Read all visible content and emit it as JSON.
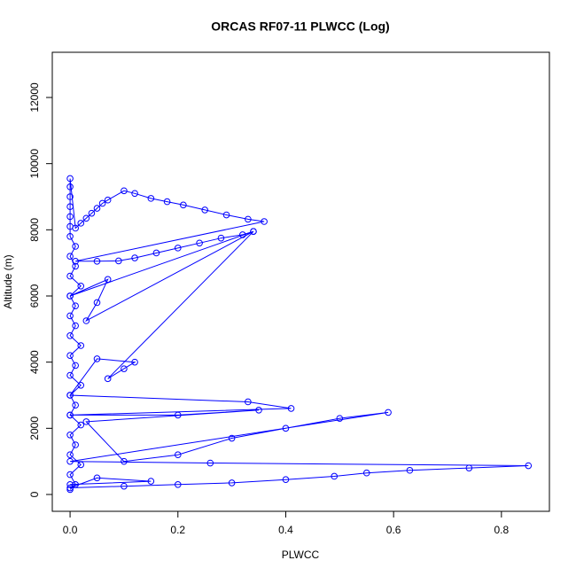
{
  "chart_data": {
    "type": "line",
    "marker": "open-circle",
    "title": "ORCAS RF07-11 PLWCC (Log)",
    "x_label": "PLWCC",
    "y_label": "Altitude (m)",
    "x": [
      0.0,
      0.01,
      0.0,
      0.02,
      0.0,
      0.01,
      0.0,
      0.02,
      0.0,
      0.01,
      0.0,
      0.02,
      0.0,
      0.01,
      0.0,
      0.02,
      0.0,
      0.01,
      0.0,
      0.01,
      0.0,
      0.02,
      0.0,
      0.01,
      0.0,
      0.01,
      0.0,
      0.0,
      0.0,
      0.0,
      0.0,
      0.0,
      0.0,
      0.01,
      0.02,
      0.03,
      0.04,
      0.05,
      0.06,
      0.07,
      0.1,
      0.12,
      0.15,
      0.18,
      0.21,
      0.25,
      0.29,
      0.33,
      0.36,
      0.01,
      0.05,
      0.09,
      0.12,
      0.16,
      0.2,
      0.24,
      0.28,
      0.32,
      0.34,
      0.03,
      0.05,
      0.07,
      0.0,
      0.34,
      0.07,
      0.1,
      0.12,
      0.05,
      0.0,
      0.33,
      0.41,
      0.0,
      0.2,
      0.35,
      0.03,
      0.1,
      0.2,
      0.3,
      0.4,
      0.5,
      0.59,
      0.0,
      0.26,
      0.85,
      0.74,
      0.63,
      0.55,
      0.49,
      0.4,
      0.3,
      0.2,
      0.1,
      0.0,
      0.05,
      0.15,
      0.0
    ],
    "series": [
      {
        "name": "PLWCC",
        "color": "#0000ff",
        "values": [
          150,
          300,
          600,
          900,
          1200,
          1500,
          1800,
          2100,
          2400,
          2700,
          3000,
          3300,
          3600,
          3900,
          4200,
          4500,
          4800,
          5100,
          5400,
          5700,
          6000,
          6300,
          6600,
          6900,
          7200,
          7500,
          7800,
          8100,
          8400,
          8700,
          9000,
          9300,
          9550,
          8050,
          8200,
          8350,
          8500,
          8650,
          8800,
          8900,
          9180,
          9100,
          8950,
          8850,
          8750,
          8600,
          8450,
          8320,
          8250,
          7050,
          7050,
          7060,
          7150,
          7300,
          7450,
          7600,
          7750,
          7850,
          7950,
          5250,
          5800,
          6500,
          6000,
          7950,
          3500,
          3800,
          4000,
          4100,
          3000,
          2800,
          2600,
          2400,
          2400,
          2550,
          2200,
          1000,
          1200,
          1700,
          2000,
          2300,
          2480,
          1000,
          950,
          870,
          800,
          730,
          650,
          550,
          450,
          350,
          300,
          250,
          200,
          500,
          400,
          300
        ]
      }
    ],
    "xlim": [
      -0.033,
      0.889
    ],
    "ylim": [
      -509,
      13366
    ],
    "xticks": [
      {
        "value": 0,
        "label": "0.0"
      },
      {
        "value": 0.2,
        "label": "0.2"
      },
      {
        "value": 0.4,
        "label": "0.4"
      },
      {
        "value": 0.6,
        "label": "0.6"
      },
      {
        "value": 0.8,
        "label": "0.8"
      }
    ],
    "yticks": [
      0,
      2000,
      4000,
      6000,
      8000,
      10000,
      12000
    ],
    "grid": false
  }
}
